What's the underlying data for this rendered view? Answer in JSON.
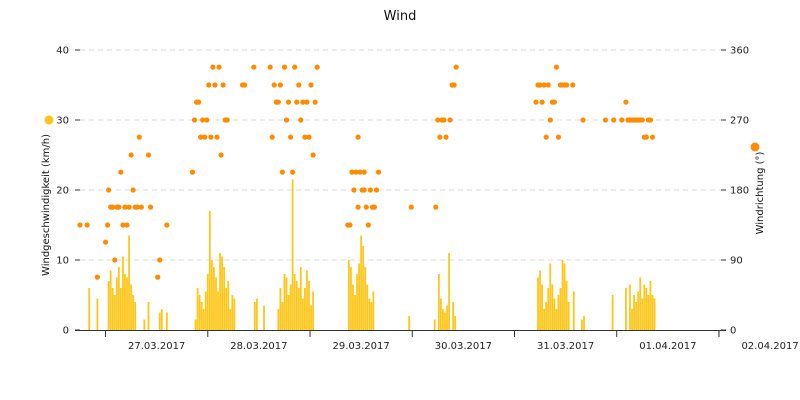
{
  "chart_data": {
    "type": "bar+scatter",
    "title": "Wind",
    "x": {
      "categories": [
        "27.03.2017",
        "28.03.2017",
        "29.03.2017",
        "30.03.2017",
        "31.03.2017",
        "01.04.2017",
        "02.04.2017"
      ],
      "range": [
        "26.03.2017 18:00",
        "02.04.2017 20:00"
      ]
    },
    "y_left": {
      "label": "Windgeschwindigkeit (km/h)",
      "range": [
        0,
        40
      ],
      "ticks": [
        "0",
        "10",
        "20",
        "30",
        "40"
      ]
    },
    "y_right": {
      "label": "Windrichtung (°)",
      "range": [
        0,
        360
      ],
      "ticks": [
        "0",
        "90",
        "180",
        "270",
        "360"
      ]
    },
    "grid": "horizontal dashed",
    "series": [
      {
        "name": "Windgeschwindigkeit (km/h)",
        "type": "bar",
        "color": "#ffc61a",
        "axis": "left",
        "unit_x": "days since 26.03.2017 18:00",
        "points": [
          [
            0.09,
            6.0
          ],
          [
            0.17,
            4.5
          ],
          [
            0.28,
            7.0
          ],
          [
            0.3,
            8.5
          ],
          [
            0.32,
            6.0
          ],
          [
            0.34,
            5.0
          ],
          [
            0.36,
            7.5
          ],
          [
            0.38,
            9.0
          ],
          [
            0.4,
            6.0
          ],
          [
            0.42,
            10.5
          ],
          [
            0.44,
            8.0
          ],
          [
            0.46,
            7.5
          ],
          [
            0.48,
            13.5
          ],
          [
            0.5,
            6.5
          ],
          [
            0.52,
            5.0
          ],
          [
            0.54,
            4.0
          ],
          [
            0.63,
            1.5
          ],
          [
            0.67,
            4.0
          ],
          [
            0.78,
            2.5
          ],
          [
            0.8,
            3.0
          ],
          [
            0.85,
            2.5
          ],
          [
            1.13,
            1.5
          ],
          [
            1.15,
            6.0
          ],
          [
            1.17,
            5.0
          ],
          [
            1.19,
            4.0
          ],
          [
            1.21,
            3.0
          ],
          [
            1.23,
            5.5
          ],
          [
            1.25,
            8.0
          ],
          [
            1.27,
            17.0
          ],
          [
            1.29,
            10.0
          ],
          [
            1.31,
            9.0
          ],
          [
            1.33,
            7.5
          ],
          [
            1.35,
            5.5
          ],
          [
            1.37,
            11.0
          ],
          [
            1.39,
            10.5
          ],
          [
            1.41,
            9.0
          ],
          [
            1.43,
            6.0
          ],
          [
            1.45,
            7.0
          ],
          [
            1.47,
            3.0
          ],
          [
            1.49,
            5.0
          ],
          [
            1.51,
            4.5
          ],
          [
            1.71,
            4.0
          ],
          [
            1.73,
            4.5
          ],
          [
            1.8,
            3.5
          ],
          [
            1.94,
            3.0
          ],
          [
            1.96,
            6.0
          ],
          [
            1.98,
            4.0
          ],
          [
            2.0,
            8.0
          ],
          [
            2.02,
            7.5
          ],
          [
            2.04,
            5.0
          ],
          [
            2.06,
            6.5
          ],
          [
            2.08,
            21.5
          ],
          [
            2.1,
            8.0
          ],
          [
            2.12,
            7.0
          ],
          [
            2.14,
            6.0
          ],
          [
            2.16,
            9.0
          ],
          [
            2.18,
            4.5
          ],
          [
            2.2,
            6.0
          ],
          [
            2.22,
            8.5
          ],
          [
            2.24,
            7.0
          ],
          [
            2.26,
            3.5
          ],
          [
            2.28,
            5.5
          ],
          [
            2.63,
            10.0
          ],
          [
            2.65,
            9.0
          ],
          [
            2.67,
            6.5
          ],
          [
            2.69,
            5.0
          ],
          [
            2.71,
            8.0
          ],
          [
            2.73,
            9.5
          ],
          [
            2.75,
            13.5
          ],
          [
            2.77,
            12.0
          ],
          [
            2.79,
            9.0
          ],
          [
            2.81,
            6.5
          ],
          [
            2.83,
            4.5
          ],
          [
            2.85,
            4.0
          ],
          [
            2.87,
            5.5
          ],
          [
            3.22,
            2.0
          ],
          [
            3.47,
            1.5
          ],
          [
            3.51,
            8.0
          ],
          [
            3.53,
            4.5
          ],
          [
            3.55,
            3.0
          ],
          [
            3.57,
            2.5
          ],
          [
            3.59,
            3.5
          ],
          [
            3.61,
            11.0
          ],
          [
            3.65,
            4.0
          ],
          [
            3.67,
            2.0
          ],
          [
            4.48,
            7.5
          ],
          [
            4.5,
            8.5
          ],
          [
            4.52,
            6.5
          ],
          [
            4.54,
            3.0
          ],
          [
            4.56,
            4.0
          ],
          [
            4.58,
            6.0
          ],
          [
            4.6,
            9.5
          ],
          [
            4.62,
            6.5
          ],
          [
            4.64,
            4.5
          ],
          [
            4.66,
            3.0
          ],
          [
            4.68,
            5.0
          ],
          [
            4.7,
            6.0
          ],
          [
            4.72,
            10.0
          ],
          [
            4.74,
            9.5
          ],
          [
            4.76,
            7.0
          ],
          [
            4.78,
            4.0
          ],
          [
            4.83,
            5.5
          ],
          [
            4.91,
            1.5
          ],
          [
            4.93,
            2.0
          ],
          [
            5.21,
            5.0
          ],
          [
            5.34,
            6.0
          ],
          [
            5.38,
            6.5
          ],
          [
            5.4,
            3.0
          ],
          [
            5.42,
            5.0
          ],
          [
            5.44,
            4.0
          ],
          [
            5.46,
            5.5
          ],
          [
            5.48,
            7.5
          ],
          [
            5.5,
            4.5
          ],
          [
            5.52,
            6.5
          ],
          [
            5.54,
            6.0
          ],
          [
            5.56,
            5.0
          ],
          [
            5.58,
            7.0
          ],
          [
            5.6,
            5.0
          ],
          [
            5.62,
            4.5
          ]
        ]
      },
      {
        "name": "Windrichtung (°)",
        "type": "scatter",
        "color": "#ff8c00",
        "axis": "right",
        "unit_x": "days since 26.03.2017 18:00",
        "points": [
          [
            0.0,
            135
          ],
          [
            0.07,
            135
          ],
          [
            0.17,
            68
          ],
          [
            0.25,
            113
          ],
          [
            0.27,
            135
          ],
          [
            0.28,
            180
          ],
          [
            0.3,
            158
          ],
          [
            0.32,
            158
          ],
          [
            0.34,
            90
          ],
          [
            0.36,
            158
          ],
          [
            0.38,
            158
          ],
          [
            0.4,
            203
          ],
          [
            0.42,
            135
          ],
          [
            0.44,
            158
          ],
          [
            0.46,
            135
          ],
          [
            0.48,
            158
          ],
          [
            0.5,
            225
          ],
          [
            0.52,
            180
          ],
          [
            0.54,
            158
          ],
          [
            0.56,
            158
          ],
          [
            0.58,
            248
          ],
          [
            0.6,
            158
          ],
          [
            0.67,
            225
          ],
          [
            0.69,
            158
          ],
          [
            0.76,
            68
          ],
          [
            0.78,
            90
          ],
          [
            0.85,
            135
          ],
          [
            1.1,
            203
          ],
          [
            1.12,
            270
          ],
          [
            1.14,
            293
          ],
          [
            1.16,
            293
          ],
          [
            1.18,
            248
          ],
          [
            1.2,
            270
          ],
          [
            1.22,
            248
          ],
          [
            1.24,
            270
          ],
          [
            1.26,
            315
          ],
          [
            1.28,
            248
          ],
          [
            1.3,
            338
          ],
          [
            1.32,
            315
          ],
          [
            1.34,
            248
          ],
          [
            1.36,
            338
          ],
          [
            1.38,
            225
          ],
          [
            1.4,
            315
          ],
          [
            1.42,
            270
          ],
          [
            1.44,
            270
          ],
          [
            1.59,
            315
          ],
          [
            1.61,
            315
          ],
          [
            1.7,
            338
          ],
          [
            1.86,
            338
          ],
          [
            1.88,
            248
          ],
          [
            1.9,
            315
          ],
          [
            1.92,
            293
          ],
          [
            1.94,
            293
          ],
          [
            1.96,
            315
          ],
          [
            1.98,
            203
          ],
          [
            2.0,
            338
          ],
          [
            2.02,
            270
          ],
          [
            2.04,
            293
          ],
          [
            2.06,
            248
          ],
          [
            2.08,
            203
          ],
          [
            2.1,
            338
          ],
          [
            2.12,
            293
          ],
          [
            2.14,
            315
          ],
          [
            2.16,
            270
          ],
          [
            2.18,
            293
          ],
          [
            2.2,
            248
          ],
          [
            2.22,
            293
          ],
          [
            2.24,
            248
          ],
          [
            2.26,
            315
          ],
          [
            2.28,
            225
          ],
          [
            2.3,
            293
          ],
          [
            2.32,
            338
          ],
          [
            2.62,
            135
          ],
          [
            2.64,
            135
          ],
          [
            2.66,
            203
          ],
          [
            2.68,
            180
          ],
          [
            2.7,
            203
          ],
          [
            2.72,
            158
          ],
          [
            2.74,
            203
          ],
          [
            2.76,
            180
          ],
          [
            2.78,
            203
          ],
          [
            2.8,
            158
          ],
          [
            2.82,
            135
          ],
          [
            2.84,
            180
          ],
          [
            2.86,
            158
          ],
          [
            2.88,
            158
          ],
          [
            2.9,
            180
          ],
          [
            2.72,
            248
          ],
          [
            2.78,
            180
          ],
          [
            2.92,
            203
          ],
          [
            3.24,
            158
          ],
          [
            3.48,
            158
          ],
          [
            3.5,
            270
          ],
          [
            3.52,
            248
          ],
          [
            3.54,
            270
          ],
          [
            3.56,
            270
          ],
          [
            3.58,
            248
          ],
          [
            3.62,
            270
          ],
          [
            3.64,
            315
          ],
          [
            3.66,
            315
          ],
          [
            3.68,
            338
          ],
          [
            4.46,
            293
          ],
          [
            4.48,
            315
          ],
          [
            4.5,
            315
          ],
          [
            4.52,
            293
          ],
          [
            4.54,
            315
          ],
          [
            4.56,
            248
          ],
          [
            4.58,
            315
          ],
          [
            4.6,
            270
          ],
          [
            4.62,
            293
          ],
          [
            4.64,
            293
          ],
          [
            4.66,
            338
          ],
          [
            4.68,
            248
          ],
          [
            4.7,
            315
          ],
          [
            4.72,
            315
          ],
          [
            4.74,
            315
          ],
          [
            4.76,
            315
          ],
          [
            4.82,
            315
          ],
          [
            4.92,
            270
          ],
          [
            5.14,
            270
          ],
          [
            5.22,
            270
          ],
          [
            5.3,
            270
          ],
          [
            5.34,
            293
          ],
          [
            5.36,
            270
          ],
          [
            5.38,
            270
          ],
          [
            5.4,
            270
          ],
          [
            5.42,
            270
          ],
          [
            5.44,
            270
          ],
          [
            5.46,
            270
          ],
          [
            5.48,
            270
          ],
          [
            5.5,
            270
          ],
          [
            5.52,
            248
          ],
          [
            5.54,
            248
          ],
          [
            5.56,
            270
          ],
          [
            5.58,
            270
          ],
          [
            5.6,
            248
          ]
        ]
      }
    ]
  }
}
